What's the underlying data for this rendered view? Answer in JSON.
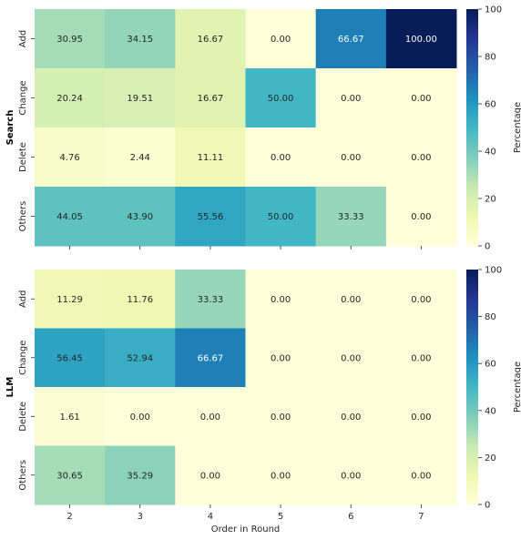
{
  "chart_data": [
    {
      "type": "heatmap",
      "ylabel": "Search",
      "xlabel": "",
      "x": [
        "2",
        "3",
        "4",
        "5",
        "6",
        "7"
      ],
      "y": [
        "Add",
        "Change",
        "Delete",
        "Others"
      ],
      "values": [
        [
          30.95,
          34.15,
          16.67,
          0.0,
          66.67,
          100.0
        ],
        [
          20.24,
          19.51,
          16.67,
          50.0,
          0.0,
          0.0
        ],
        [
          4.76,
          2.44,
          11.11,
          0.0,
          0.0,
          0.0
        ],
        [
          44.05,
          43.9,
          55.56,
          50.0,
          33.33,
          0.0
        ]
      ],
      "value_labels": [
        [
          "30.95",
          "34.15",
          "16.67",
          "0.00",
          "66.67",
          "100.00"
        ],
        [
          "20.24",
          "19.51",
          "16.67",
          "50.00",
          "0.00",
          "0.00"
        ],
        [
          "4.76",
          "2.44",
          "11.11",
          "0.00",
          "0.00",
          "0.00"
        ],
        [
          "44.05",
          "43.90",
          "55.56",
          "50.00",
          "33.33",
          "0.00"
        ]
      ],
      "colorbar": {
        "label": "Percentage",
        "range": [
          0,
          100
        ],
        "ticks": [
          "0",
          "20",
          "40",
          "60",
          "80",
          "100"
        ],
        "colormap": "YlGnBu"
      }
    },
    {
      "type": "heatmap",
      "ylabel": "LLM",
      "xlabel": "Order in Round",
      "x": [
        "2",
        "3",
        "4",
        "5",
        "6",
        "7"
      ],
      "y": [
        "Add",
        "Change",
        "Delete",
        "Others"
      ],
      "values": [
        [
          11.29,
          11.76,
          33.33,
          0.0,
          0.0,
          0.0
        ],
        [
          56.45,
          52.94,
          66.67,
          0.0,
          0.0,
          0.0
        ],
        [
          1.61,
          0.0,
          0.0,
          0.0,
          0.0,
          0.0
        ],
        [
          30.65,
          35.29,
          0.0,
          0.0,
          0.0,
          0.0
        ]
      ],
      "value_labels": [
        [
          "11.29",
          "11.76",
          "33.33",
          "0.00",
          "0.00",
          "0.00"
        ],
        [
          "56.45",
          "52.94",
          "66.67",
          "0.00",
          "0.00",
          "0.00"
        ],
        [
          "1.61",
          "0.00",
          "0.00",
          "0.00",
          "0.00",
          "0.00"
        ],
        [
          "30.65",
          "35.29",
          "0.00",
          "0.00",
          "0.00",
          "0.00"
        ]
      ],
      "colorbar": {
        "label": "Percentage",
        "range": [
          0,
          100
        ],
        "ticks": [
          "0",
          "20",
          "40",
          "60",
          "80",
          "100"
        ],
        "colormap": "YlGnBu"
      }
    }
  ]
}
